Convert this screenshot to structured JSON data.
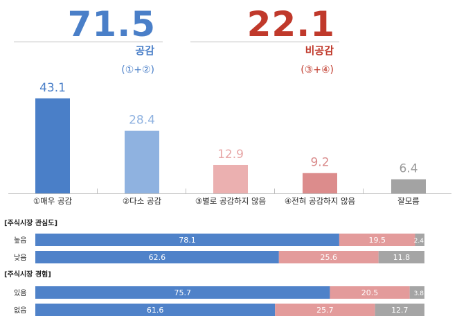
{
  "summary": {
    "agree": {
      "value": "71.5",
      "label": "공감",
      "sub": "(①+②)",
      "color": "#4a7fc8"
    },
    "disagree": {
      "value": "22.1",
      "label": "비공감",
      "sub": "(③+④)",
      "color": "#c0392b"
    }
  },
  "colors": {
    "strong_agree": "#4a7fc8",
    "agree": "#8fb2e0",
    "disagree": "#ebb0b0",
    "strong_disagree": "#dc8c8c",
    "dont_know": "#a3a3a3"
  },
  "chart_data": [
    {
      "type": "bar",
      "categories": [
        "①매우 공감",
        "②다소 공감",
        "③별로 공감하지 않음",
        "④전혀 공감하지 않음",
        "잘모름"
      ],
      "values": [
        43.1,
        28.4,
        12.9,
        9.2,
        6.4
      ],
      "ylim": [
        0,
        50
      ]
    },
    {
      "type": "bar",
      "orientation": "horizontal",
      "stacked": true,
      "group_label": "[주식시장 관심도]",
      "categories": [
        "높음",
        "낮음"
      ],
      "series": [
        {
          "values": [
            78.1,
            62.6
          ]
        },
        {
          "values": [
            19.5,
            25.6
          ]
        },
        {
          "values": [
            2.4,
            11.8
          ]
        }
      ],
      "xlim": [
        0,
        100
      ]
    },
    {
      "type": "bar",
      "orientation": "horizontal",
      "stacked": true,
      "group_label": "[주식시장 경험]",
      "categories": [
        "있음",
        "없음"
      ],
      "series": [
        {
          "values": [
            75.7,
            61.6
          ]
        },
        {
          "values": [
            20.5,
            25.7
          ]
        },
        {
          "values": [
            3.8,
            12.7
          ]
        }
      ],
      "xlim": [
        0,
        100
      ]
    }
  ]
}
